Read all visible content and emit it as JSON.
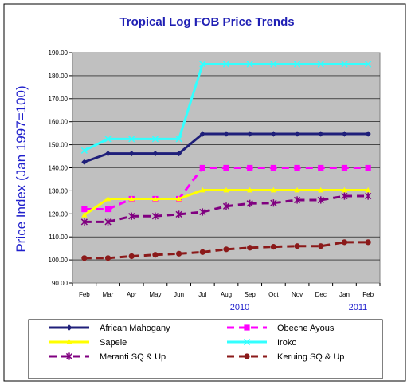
{
  "chart_data": {
    "type": "line",
    "title": "Tropical Log FOB Price Trends",
    "ylabel": "Price Index (Jan 1997=100)",
    "xlabel": "",
    "categories": [
      "Feb",
      "Mar",
      "Apr",
      "May",
      "Jun",
      "Jul",
      "Aug",
      "Sep",
      "Oct",
      "Nov",
      "Dec",
      "Jan",
      "Feb"
    ],
    "year_labels": [
      {
        "category_index": 6,
        "label": "2010"
      },
      {
        "category_index": 11,
        "label": "2011"
      }
    ],
    "ylim": [
      90,
      190
    ],
    "yticks": [
      "90.00",
      "100.00",
      "110.00",
      "120.00",
      "130.00",
      "140.00",
      "150.00",
      "160.00",
      "170.00",
      "180.00",
      "190.00"
    ],
    "legend_position": "bottom",
    "series": [
      {
        "name": "African Mahogany",
        "color": "#1f1f7a",
        "marker": "diamond",
        "dash": "solid",
        "values": [
          142.5,
          146.2,
          146.2,
          146.2,
          146.2,
          154.7,
          154.7,
          154.7,
          154.7,
          154.7,
          154.7,
          154.7,
          154.7
        ]
      },
      {
        "name": "Obeche Ayous",
        "color": "#ff00ff",
        "marker": "square",
        "dash": "dashed",
        "values": [
          122.0,
          122.0,
          126.5,
          126.5,
          126.5,
          140.0,
          140.0,
          140.0,
          140.0,
          140.0,
          140.0,
          140.0,
          140.0
        ]
      },
      {
        "name": "Sapele",
        "color": "#ffff00",
        "marker": "triangle",
        "dash": "solid",
        "values": [
          119.5,
          126.5,
          126.5,
          126.5,
          126.5,
          130.3,
          130.3,
          130.3,
          130.3,
          130.3,
          130.3,
          130.3,
          130.3
        ]
      },
      {
        "name": "Iroko",
        "color": "#33ffff",
        "marker": "x",
        "dash": "solid",
        "values": [
          147.5,
          152.5,
          152.5,
          152.5,
          152.5,
          185.0,
          185.0,
          185.0,
          185.0,
          185.0,
          185.0,
          185.0,
          185.0
        ]
      },
      {
        "name": "Meranti SQ & Up",
        "color": "#800080",
        "marker": "star",
        "dash": "dashed",
        "values": [
          116.5,
          116.5,
          119.0,
          119.0,
          119.8,
          120.8,
          123.3,
          124.5,
          124.7,
          126.0,
          126.0,
          127.7,
          127.7
        ]
      },
      {
        "name": "Keruing SQ & Up",
        "color": "#8b1a1a",
        "marker": "circle",
        "dash": "dashed",
        "values": [
          100.8,
          100.8,
          101.6,
          102.2,
          102.7,
          103.4,
          104.6,
          105.3,
          105.7,
          106.0,
          106.0,
          107.7,
          107.7
        ]
      }
    ]
  },
  "colors": {
    "plot_background": "#c0c0c0",
    "chart_background": "#ffffff",
    "border": "#000000"
  }
}
